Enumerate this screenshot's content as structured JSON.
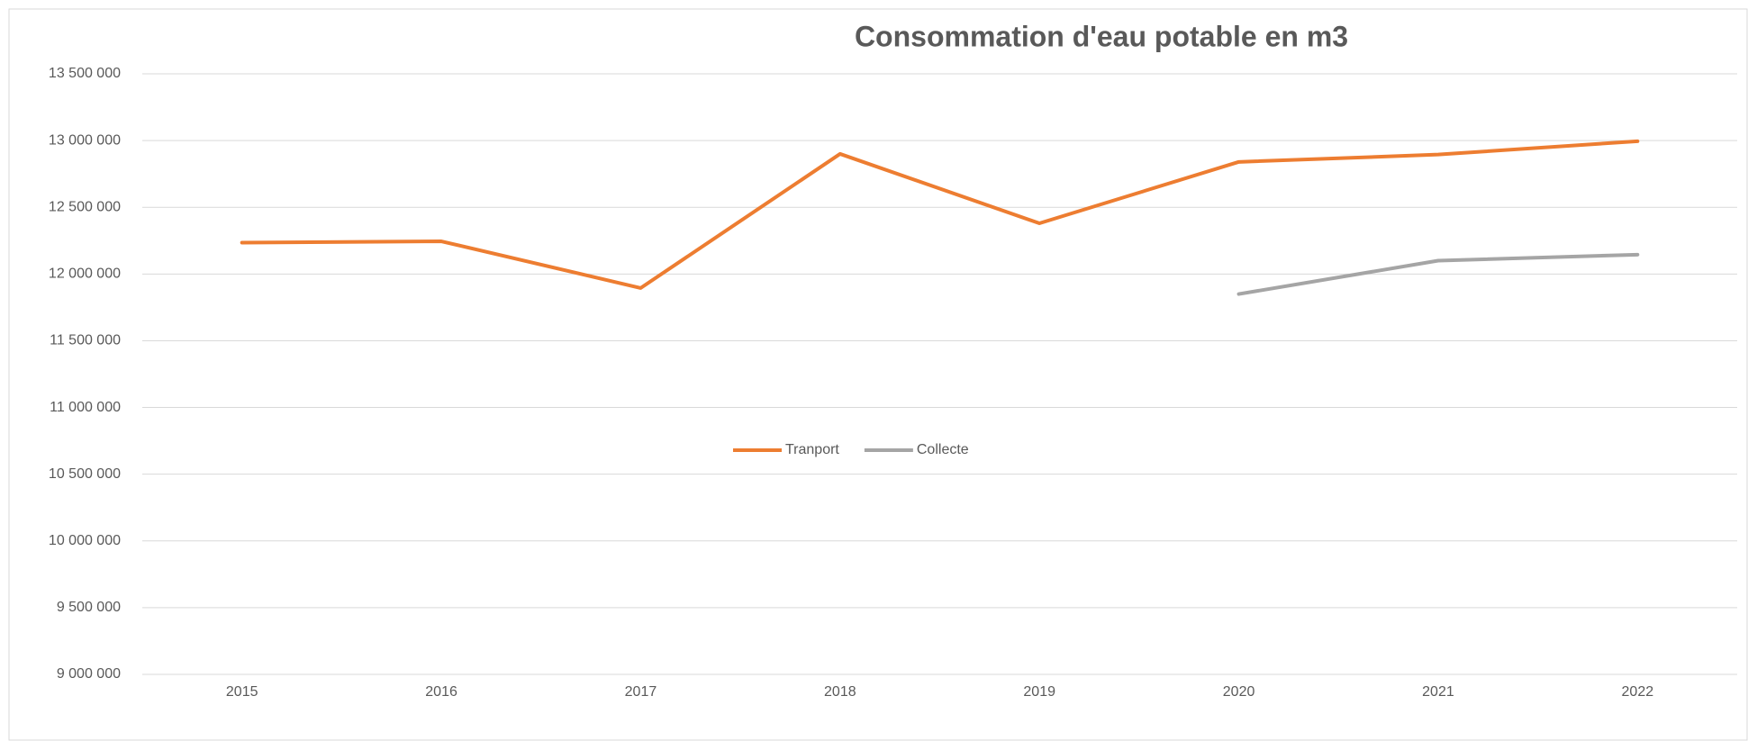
{
  "chart_data": {
    "type": "line",
    "title": "Consommation d'eau potable en m3",
    "categories": [
      "2015",
      "2016",
      "2017",
      "2018",
      "2019",
      "2020",
      "2021",
      "2022"
    ],
    "series": [
      {
        "name": "Tranport",
        "color": "#ed7d31",
        "values": [
          12235000,
          12245000,
          11895000,
          12900000,
          12380000,
          12840000,
          12895000,
          12995000
        ]
      },
      {
        "name": "Collecte",
        "color": "#a5a5a5",
        "values": [
          null,
          null,
          null,
          null,
          null,
          11850000,
          12100000,
          12145000
        ]
      }
    ],
    "ylim": [
      9000000,
      13500000
    ],
    "yticks": [
      {
        "value": 9000000,
        "label": "9 000 000"
      },
      {
        "value": 9500000,
        "label": "9 500 000"
      },
      {
        "value": 10000000,
        "label": "10 000 000"
      },
      {
        "value": 10500000,
        "label": "10 500 000"
      },
      {
        "value": 11000000,
        "label": "11 000 000"
      },
      {
        "value": 11500000,
        "label": "11 500 000"
      },
      {
        "value": 12000000,
        "label": "12 000 000"
      },
      {
        "value": 12500000,
        "label": "12 500 000"
      },
      {
        "value": 13000000,
        "label": "13 000 000"
      },
      {
        "value": 13500000,
        "label": "13 500 000"
      }
    ],
    "grid": true,
    "legend": "center"
  }
}
